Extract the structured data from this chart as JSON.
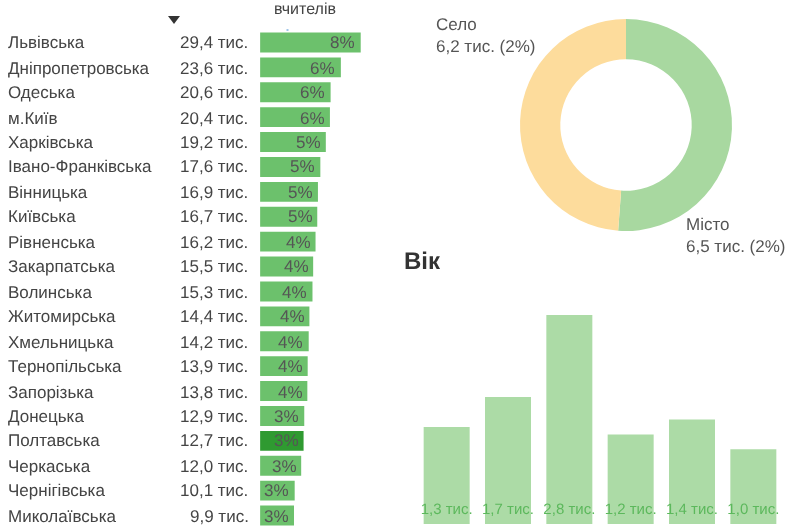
{
  "chart_data": [
    {
      "type": "bar",
      "orientation": "horizontal",
      "xlabel": "вчителів",
      "categories": [
        "Львівська",
        "Дніпропетровська",
        "Одеська",
        "м.Київ",
        "Харківська",
        "Івано-Франківська",
        "Вінницька",
        "Київська",
        "Рівненська",
        "Закарпатська",
        "Волинська",
        "Житомирська",
        "Хмельницька",
        "Тернопільська",
        "Запорізька",
        "Донецька",
        "Полтавська",
        "Черкаська",
        "Чернігівська",
        "Миколаївська"
      ],
      "values": [
        29.4,
        23.6,
        20.6,
        20.4,
        19.2,
        17.6,
        16.9,
        16.7,
        16.2,
        15.5,
        15.3,
        14.4,
        14.2,
        13.9,
        13.8,
        12.9,
        12.7,
        12.0,
        10.1,
        9.9
      ],
      "value_labels": [
        "29,4 тис.",
        "23,6 тис.",
        "20,6 тис.",
        "20,4 тис.",
        "19,2 тис.",
        "17,6 тис.",
        "16,9 тис.",
        "16,7 тис.",
        "16,2 тис.",
        "15,5 тис.",
        "15,3 тис.",
        "14,4 тис.",
        "14,2 тис.",
        "13,9 тис.",
        "13,8 тис.",
        "12,9 тис.",
        "12,7 тис.",
        "12,0 тис.",
        "10,1 тис.",
        "9,9 тис."
      ],
      "colors": [
        "#6cc16c",
        "#6cc16c",
        "#6cc16c",
        "#6cc16c",
        "#6cc16c",
        "#6cc16c",
        "#6cc16c",
        "#6cc16c",
        "#6cc16c",
        "#6cc16c",
        "#6cc16c",
        "#6cc16c",
        "#6cc16c",
        "#6cc16c",
        "#6cc16c",
        "#6cc16c",
        "#2f9a31",
        "#6cc16c",
        "#6cc16c",
        "#6cc16c"
      ],
      "annotations": [
        {
          "text": "8%",
          "x": 29.4,
          "y": "Львівська"
        },
        {
          "text": "6%",
          "x": 23.6,
          "y": "Дніпропетровська"
        },
        {
          "text": "6%",
          "x": 20.6,
          "y": "Одеська"
        },
        {
          "text": "6%",
          "x": 20.4,
          "y": "м.Київ"
        },
        {
          "text": "5%",
          "x": 19.2,
          "y": "Харківська"
        },
        {
          "text": "5%",
          "x": 17.6,
          "y": "Івано-Франківська"
        },
        {
          "text": "5%",
          "x": 16.9,
          "y": "Вінницька"
        },
        {
          "text": "5%",
          "x": 16.7,
          "y": "Київська"
        },
        {
          "text": "4%",
          "x": 16.2,
          "y": "Рівненська"
        },
        {
          "text": "4%",
          "x": 15.5,
          "y": "Закарпатська"
        },
        {
          "text": "4%",
          "x": 15.3,
          "y": "Волинська"
        },
        {
          "text": "4%",
          "x": 14.4,
          "y": "Житомирська"
        },
        {
          "text": "4%",
          "x": 14.2,
          "y": "Хмельницька"
        },
        {
          "text": "4%",
          "x": 13.9,
          "y": "Тернопільська"
        },
        {
          "text": "4%",
          "x": 13.8,
          "y": "Запорізька"
        },
        {
          "text": "3%",
          "x": 12.9,
          "y": "Донецька"
        },
        {
          "text": "3%",
          "x": 12.7,
          "y": "Полтавська"
        },
        {
          "text": "3%",
          "x": 12.0,
          "y": "Черкаська"
        },
        {
          "text": "3%",
          "x": 10.1,
          "y": "Чернігівська"
        },
        {
          "text": "3%",
          "x": 9.9,
          "y": "Миколаївська"
        }
      ]
    },
    {
      "type": "donut",
      "categories": [
        "Місто",
        "Село"
      ],
      "values": [
        6.5,
        6.2
      ],
      "value_labels": [
        "6,5 тис. (2%)",
        "6,2 тис. (2%)"
      ],
      "colors": [
        "#a8d8a0",
        "#fddc9c"
      ]
    },
    {
      "type": "bar",
      "title": "Вік",
      "categories": [
        null,
        null,
        null,
        null,
        null,
        null
      ],
      "values": [
        1.3,
        1.7,
        2.8,
        1.2,
        1.4,
        1.0
      ],
      "value_labels": [
        "1,3 тис.",
        "1,7 тис.",
        "2,8 тис.",
        "1,2 тис.",
        "1,4 тис.",
        "1,0 тис."
      ],
      "color": "#acdba6"
    }
  ]
}
